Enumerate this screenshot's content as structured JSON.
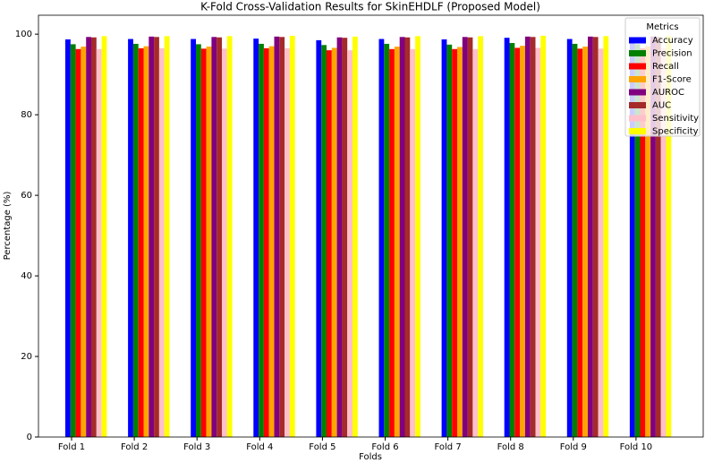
{
  "chart_data": {
    "type": "bar",
    "title": "K-Fold Cross-Validation Results for SkinEHDLF (Proposed Model)",
    "x_label": "Folds",
    "y_label": "Percentage (%)",
    "categories": [
      "Fold 1",
      "Fold 2",
      "Fold 3",
      "Fold 4",
      "Fold 5",
      "Fold 6",
      "Fold 7",
      "Fold 8",
      "Fold 9",
      "Fold 10"
    ],
    "series": [
      {
        "name": "Accuracy",
        "color": "#0000ff",
        "values": [
          98.7,
          98.8,
          98.8,
          98.9,
          98.5,
          98.8,
          98.7,
          99.1,
          98.8,
          98.9
        ]
      },
      {
        "name": "Precision",
        "color": "#008000",
        "values": [
          97.5,
          97.6,
          97.5,
          97.6,
          97.3,
          97.6,
          97.4,
          97.8,
          97.6,
          97.5
        ]
      },
      {
        "name": "Recall",
        "color": "#ff0000",
        "values": [
          96.3,
          96.5,
          96.4,
          96.5,
          96.0,
          96.3,
          96.3,
          96.6,
          96.4,
          96.5
        ]
      },
      {
        "name": "F1-Score",
        "color": "#ffa500",
        "values": [
          96.9,
          97.0,
          96.9,
          97.0,
          96.6,
          96.9,
          96.8,
          97.1,
          96.9,
          97.0
        ]
      },
      {
        "name": "AUROC",
        "color": "#800080",
        "values": [
          99.3,
          99.4,
          99.3,
          99.4,
          99.2,
          99.3,
          99.3,
          99.4,
          99.4,
          99.4
        ]
      },
      {
        "name": "AUC",
        "color": "#a52a2a",
        "values": [
          99.2,
          99.3,
          99.2,
          99.3,
          99.1,
          99.2,
          99.2,
          99.3,
          99.3,
          99.3
        ]
      },
      {
        "name": "Sensitivity",
        "color": "#ffc0cb",
        "values": [
          96.3,
          96.5,
          96.4,
          96.5,
          96.0,
          96.3,
          96.3,
          96.6,
          96.4,
          96.5
        ]
      },
      {
        "name": "Specificity",
        "color": "#ffff00",
        "values": [
          99.5,
          99.5,
          99.5,
          99.6,
          99.4,
          99.5,
          99.5,
          99.6,
          99.5,
          99.6
        ]
      }
    ],
    "ylim": [
      0,
      104.7
    ],
    "yticks": [
      0,
      20,
      40,
      60,
      80,
      100
    ],
    "legend_title": "Metrics",
    "legend": "upper right",
    "grid": false
  }
}
